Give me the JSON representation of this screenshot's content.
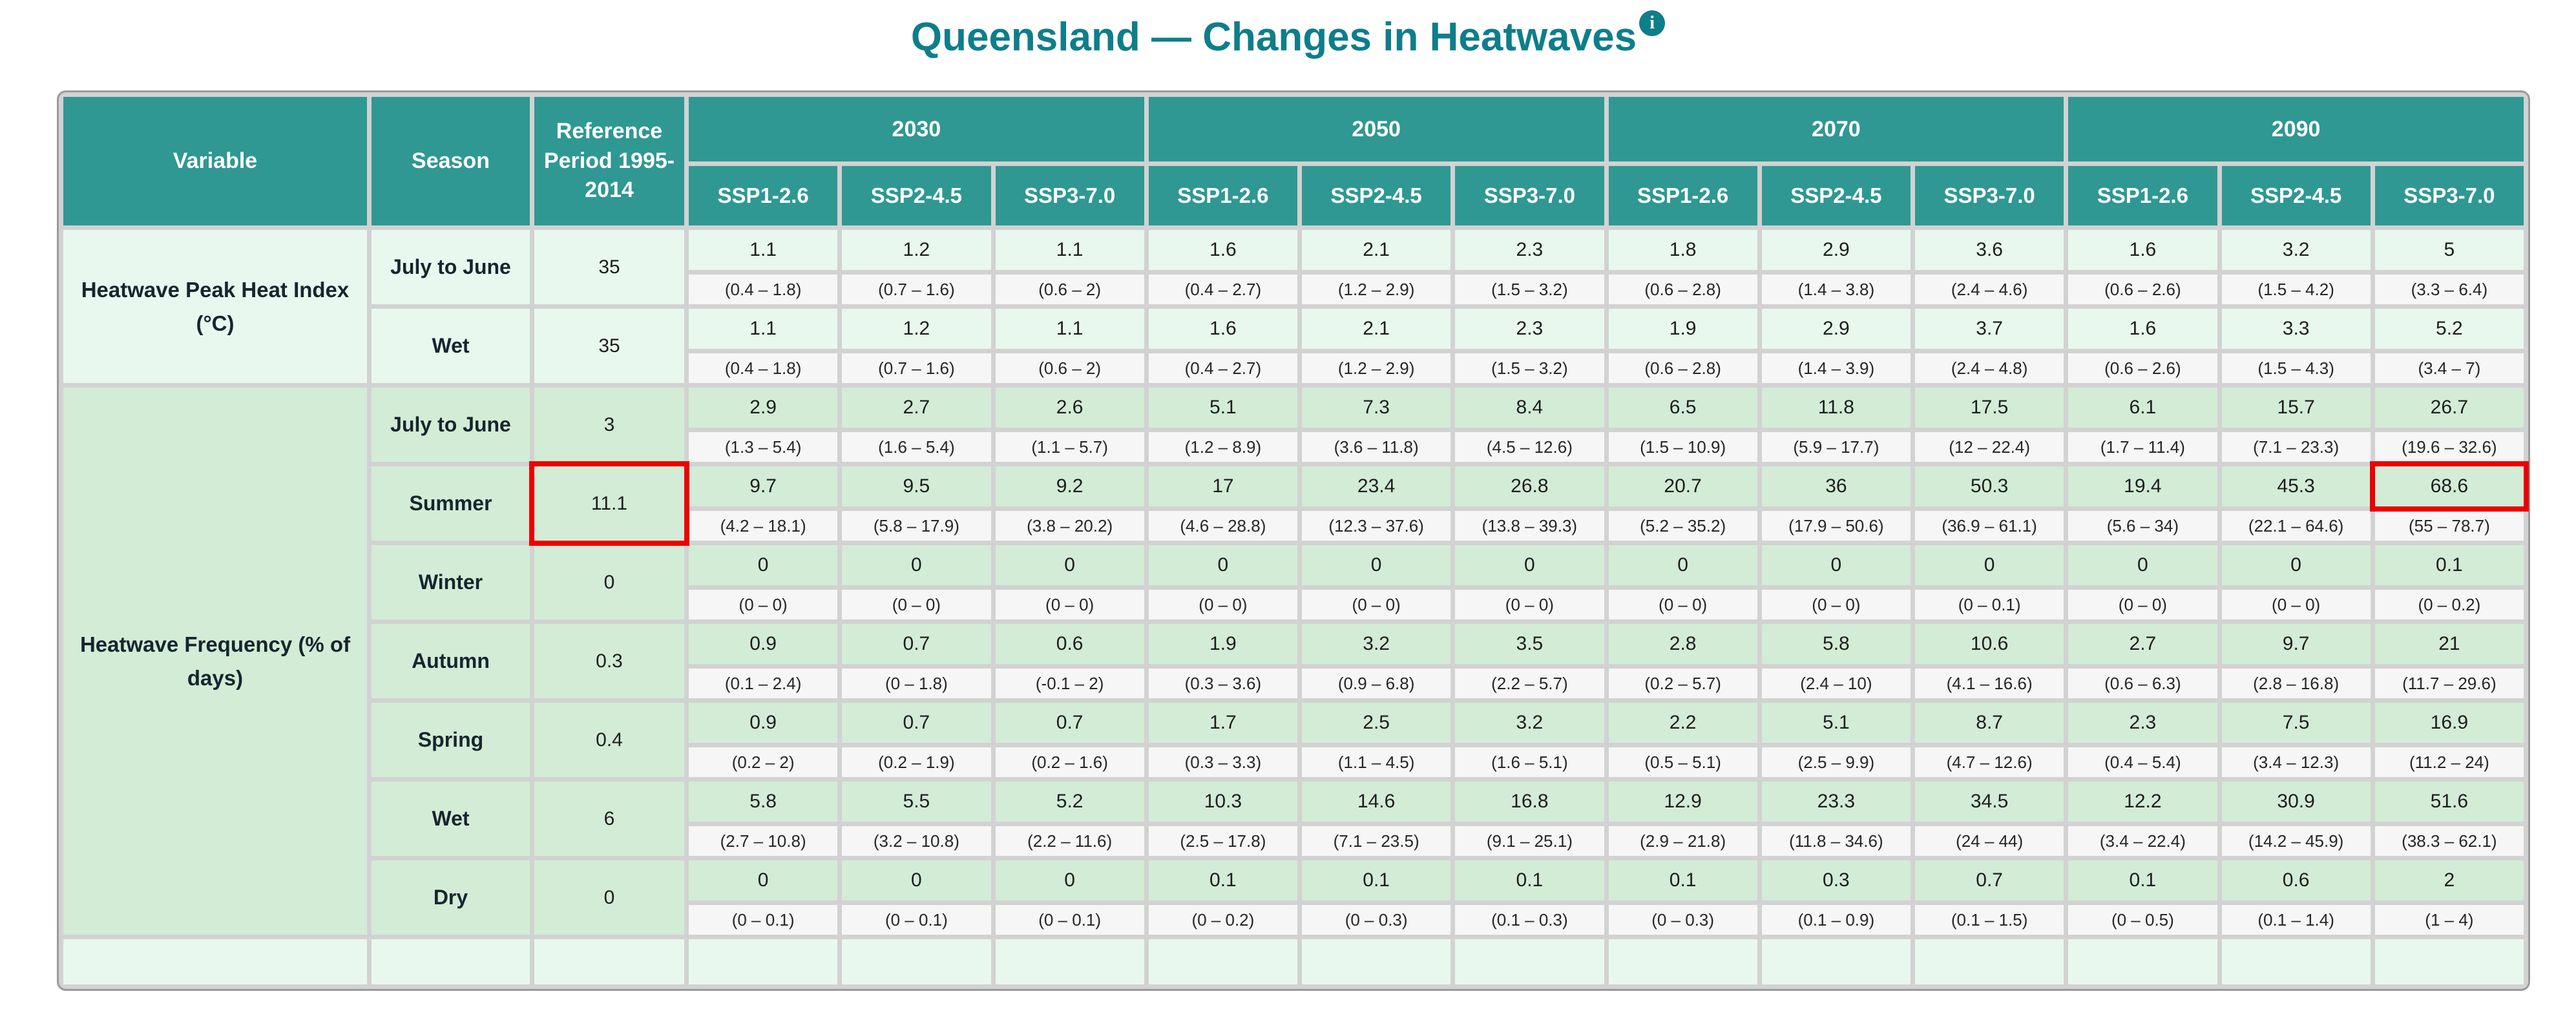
{
  "title": "Queensland — Changes in Heatwaves",
  "icons": {
    "info_glyph": "i"
  },
  "colors": {
    "title_teal": "#0e7e8a",
    "header_teal": "#2f9892",
    "block1_tint": "#e8f8ee",
    "block2_tint": "#d3ecd6",
    "range_bg": "#f6f6f6",
    "grid_gap": "#d2d2d2",
    "outer_border": "#9a9a9a",
    "highlight_red": "#ec0000"
  },
  "chart_data": {
    "type": "table",
    "title": "Queensland — Changes in Heatwaves",
    "fixed_columns": [
      "Variable",
      "Season",
      "Reference Period 1995-2014"
    ],
    "year_groups": [
      "2030",
      "2050",
      "2070",
      "2090"
    ],
    "scenarios": [
      "SSP1-2.6",
      "SSP2-4.5",
      "SSP3-7.0"
    ],
    "blocks": [
      {
        "variable": "Heatwave Peak Heat Index (°C)",
        "tint": "#e8f8ee",
        "rows": [
          {
            "season": "July to June",
            "reference": "35",
            "values": [
              "1.1",
              "1.2",
              "1.1",
              "1.6",
              "2.1",
              "2.3",
              "1.8",
              "2.9",
              "3.6",
              "1.6",
              "3.2",
              "5"
            ],
            "ranges": [
              "(0.4 – 1.8)",
              "(0.7 – 1.6)",
              "(0.6 – 2)",
              "(0.4 – 2.7)",
              "(1.2 – 2.9)",
              "(1.5 – 3.2)",
              "(0.6 – 2.8)",
              "(1.4 – 3.8)",
              "(2.4 – 4.6)",
              "(0.6 – 2.6)",
              "(1.5 – 4.2)",
              "(3.3 – 6.4)"
            ]
          },
          {
            "season": "Wet",
            "reference": "35",
            "values": [
              "1.1",
              "1.2",
              "1.1",
              "1.6",
              "2.1",
              "2.3",
              "1.9",
              "2.9",
              "3.7",
              "1.6",
              "3.3",
              "5.2"
            ],
            "ranges": [
              "(0.4 – 1.8)",
              "(0.7 – 1.6)",
              "(0.6 – 2)",
              "(0.4 – 2.7)",
              "(1.2 – 2.9)",
              "(1.5 – 3.2)",
              "(0.6 – 2.8)",
              "(1.4 – 3.9)",
              "(2.4 – 4.8)",
              "(0.6 – 2.6)",
              "(1.5 – 4.3)",
              "(3.4 – 7)"
            ]
          }
        ]
      },
      {
        "variable": "Heatwave Frequency (% of days)",
        "tint": "#d3ecd6",
        "rows": [
          {
            "season": "July to June",
            "reference": "3",
            "values": [
              "2.9",
              "2.7",
              "2.6",
              "5.1",
              "7.3",
              "8.4",
              "6.5",
              "11.8",
              "17.5",
              "6.1",
              "15.7",
              "26.7"
            ],
            "ranges": [
              "(1.3 – 5.4)",
              "(1.6 – 5.4)",
              "(1.1 – 5.7)",
              "(1.2 – 8.9)",
              "(3.6 – 11.8)",
              "(4.5 – 12.6)",
              "(1.5 – 10.9)",
              "(5.9 – 17.7)",
              "(12 – 22.4)",
              "(1.7 – 11.4)",
              "(7.1 – 23.3)",
              "(19.6 – 32.6)"
            ]
          },
          {
            "season": "Summer",
            "reference": "11.1",
            "highlight_reference": true,
            "highlight_value_col": 11,
            "values": [
              "9.7",
              "9.5",
              "9.2",
              "17",
              "23.4",
              "26.8",
              "20.7",
              "36",
              "50.3",
              "19.4",
              "45.3",
              "68.6"
            ],
            "ranges": [
              "(4.2 – 18.1)",
              "(5.8 – 17.9)",
              "(3.8 – 20.2)",
              "(4.6 – 28.8)",
              "(12.3 – 37.6)",
              "(13.8 – 39.3)",
              "(5.2 – 35.2)",
              "(17.9 – 50.6)",
              "(36.9 – 61.1)",
              "(5.6 – 34)",
              "(22.1 – 64.6)",
              "(55 – 78.7)"
            ]
          },
          {
            "season": "Winter",
            "reference": "0",
            "values": [
              "0",
              "0",
              "0",
              "0",
              "0",
              "0",
              "0",
              "0",
              "0",
              "0",
              "0",
              "0.1"
            ],
            "ranges": [
              "(0 – 0)",
              "(0 – 0)",
              "(0 – 0)",
              "(0 – 0)",
              "(0 – 0)",
              "(0 – 0)",
              "(0 – 0)",
              "(0 – 0)",
              "(0 – 0.1)",
              "(0 – 0)",
              "(0 – 0)",
              "(0 – 0.2)"
            ]
          },
          {
            "season": "Autumn",
            "reference": "0.3",
            "values": [
              "0.9",
              "0.7",
              "0.6",
              "1.9",
              "3.2",
              "3.5",
              "2.8",
              "5.8",
              "10.6",
              "2.7",
              "9.7",
              "21"
            ],
            "ranges": [
              "(0.1 – 2.4)",
              "(0 – 1.8)",
              "(-0.1 – 2)",
              "(0.3 – 3.6)",
              "(0.9 – 6.8)",
              "(2.2 – 5.7)",
              "(0.2 – 5.7)",
              "(2.4 – 10)",
              "(4.1 – 16.6)",
              "(0.6 – 6.3)",
              "(2.8 – 16.8)",
              "(11.7 – 29.6)"
            ]
          },
          {
            "season": "Spring",
            "reference": "0.4",
            "values": [
              "0.9",
              "0.7",
              "0.7",
              "1.7",
              "2.5",
              "3.2",
              "2.2",
              "5.1",
              "8.7",
              "2.3",
              "7.5",
              "16.9"
            ],
            "ranges": [
              "(0.2 – 2)",
              "(0.2 – 1.9)",
              "(0.2 – 1.6)",
              "(0.3 – 3.3)",
              "(1.1 – 4.5)",
              "(1.6 – 5.1)",
              "(0.5 – 5.1)",
              "(2.5 – 9.9)",
              "(4.7 – 12.6)",
              "(0.4 – 5.4)",
              "(3.4 – 12.3)",
              "(11.2 – 24)"
            ]
          },
          {
            "season": "Wet",
            "reference": "6",
            "values": [
              "5.8",
              "5.5",
              "5.2",
              "10.3",
              "14.6",
              "16.8",
              "12.9",
              "23.3",
              "34.5",
              "12.2",
              "30.9",
              "51.6"
            ],
            "ranges": [
              "(2.7 – 10.8)",
              "(3.2 – 10.8)",
              "(2.2 – 11.6)",
              "(2.5 – 17.8)",
              "(7.1 – 23.5)",
              "(9.1 – 25.1)",
              "(2.9 – 21.8)",
              "(11.8 – 34.6)",
              "(24 – 44)",
              "(3.4 – 22.4)",
              "(14.2 – 45.9)",
              "(38.3 – 62.1)"
            ]
          },
          {
            "season": "Dry",
            "reference": "0",
            "values": [
              "0",
              "0",
              "0",
              "0.1",
              "0.1",
              "0.1",
              "0.1",
              "0.3",
              "0.7",
              "0.1",
              "0.6",
              "2"
            ],
            "ranges": [
              "(0 – 0.1)",
              "(0 – 0.1)",
              "(0 – 0.1)",
              "(0 – 0.2)",
              "(0 – 0.3)",
              "(0.1 – 0.3)",
              "(0 – 0.3)",
              "(0.1 – 0.9)",
              "(0.1 – 1.5)",
              "(0 – 0.5)",
              "(0.1 – 1.4)",
              "(1 – 4)"
            ]
          }
        ]
      }
    ],
    "layout_hints": {
      "value_row_then_range_row": true,
      "partial_next_block_visible_at_bottom": true
    }
  }
}
